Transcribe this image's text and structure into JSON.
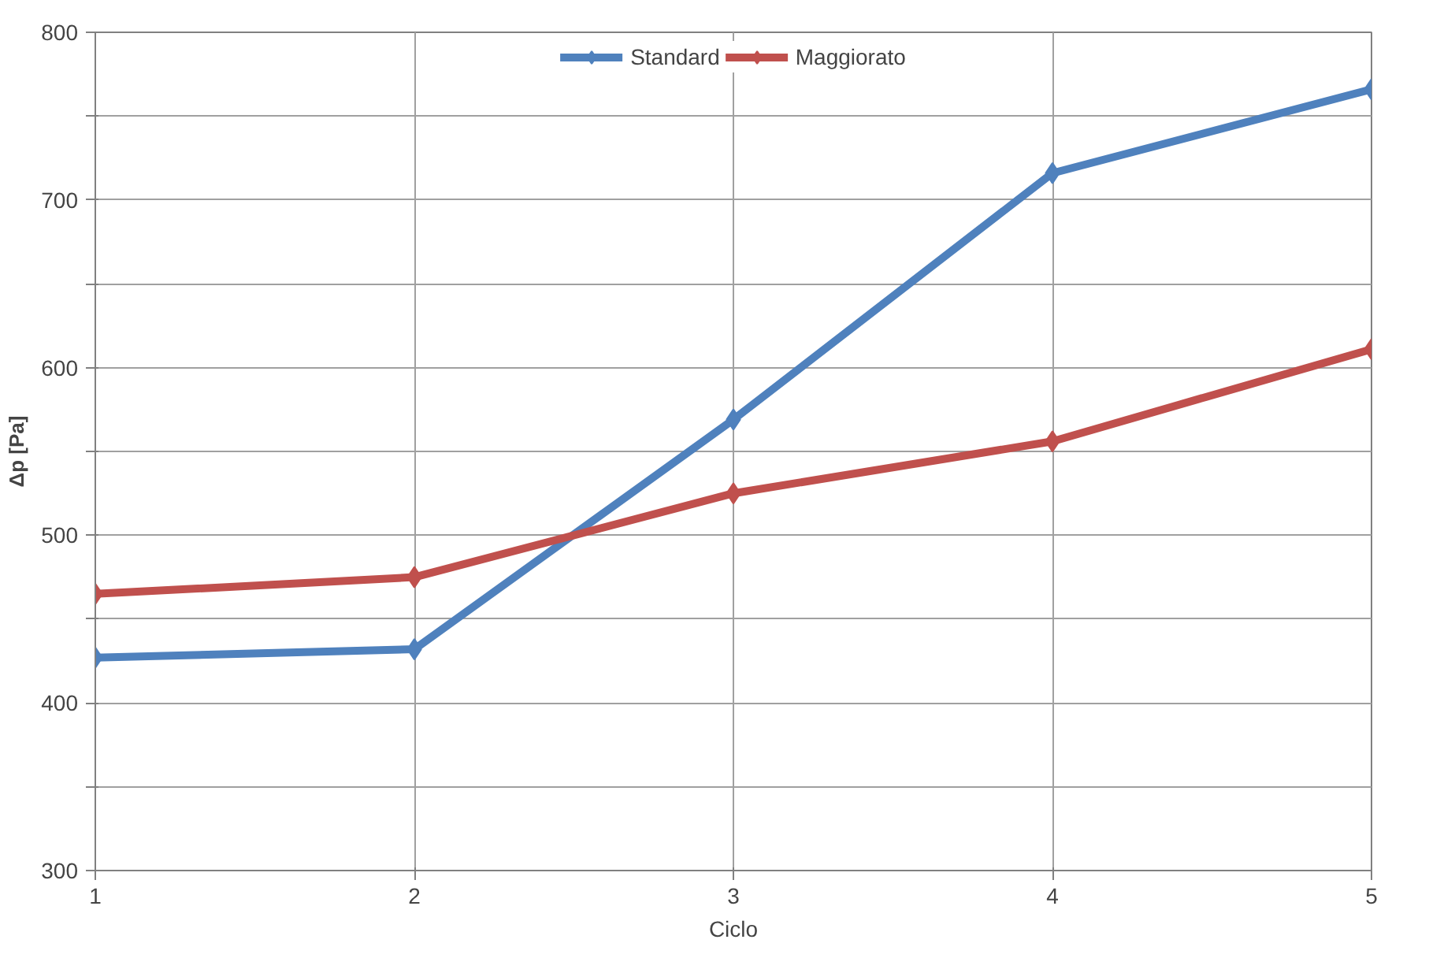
{
  "chart_data": {
    "type": "line",
    "xlabel": "Ciclo",
    "ylabel": "Δp [Pa]",
    "x": [
      1,
      2,
      3,
      4,
      5
    ],
    "series": [
      {
        "name": "Standard",
        "color": "#4f81bd",
        "values": [
          427,
          432,
          569,
          716,
          766
        ]
      },
      {
        "name": "Maggiorato",
        "color": "#c0504d",
        "values": [
          465,
          475,
          525,
          556,
          611
        ]
      }
    ],
    "xlim": [
      1,
      5
    ],
    "xticks": [
      1,
      2,
      3,
      4,
      5
    ],
    "ylim": [
      300,
      800
    ],
    "yticks": [
      300,
      {
        "value": 350,
        "label": null
      },
      400,
      {
        "value": 450,
        "label": null
      },
      500,
      {
        "value": 550,
        "label": null
      },
      600,
      {
        "value": 650,
        "label": null
      },
      700,
      {
        "value": 750,
        "label": null
      },
      800
    ],
    "grid": true,
    "legend": "top",
    "marker": "diamond",
    "line_style": "solid"
  }
}
